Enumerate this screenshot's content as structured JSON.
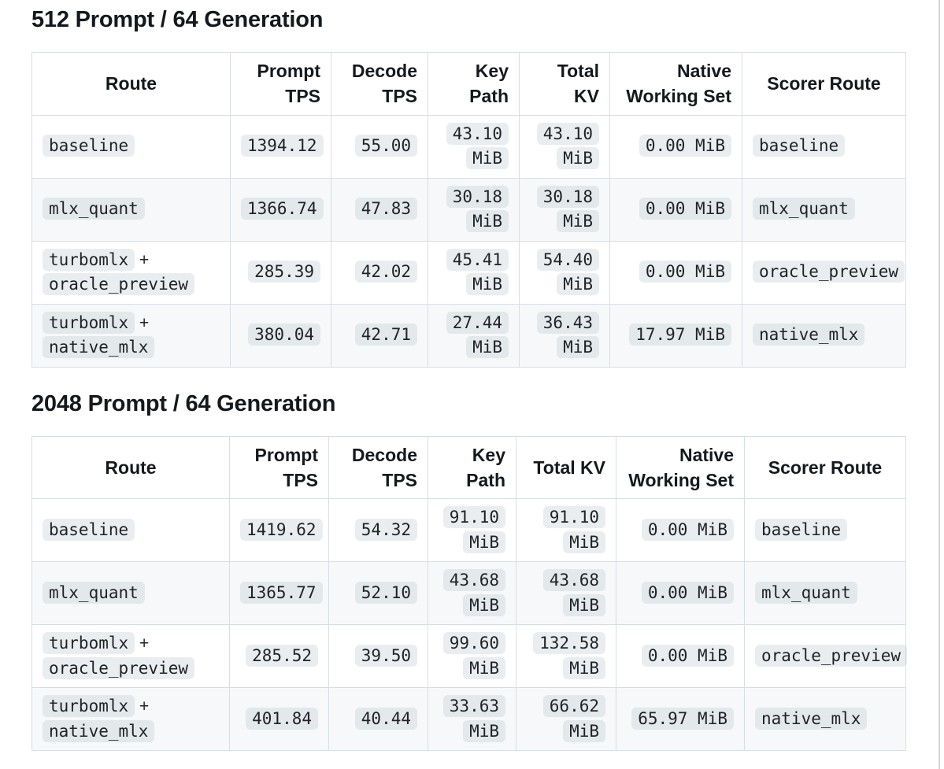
{
  "colors": {
    "border": "#d9dee4",
    "row_stripe": "#f6f8fa",
    "code_chip_bg": "rgba(173,183,192,0.25)",
    "heading_text": "#15181c",
    "body_text": "#1f2328"
  },
  "sections": [
    {
      "heading": "512 Prompt / 64 Generation",
      "table": {
        "columns": [
          {
            "label": "Route",
            "header_align": "center",
            "cell_align": "left"
          },
          {
            "label": "Prompt TPS",
            "header_align": "right",
            "cell_align": "right"
          },
          {
            "label": "Decode TPS",
            "header_align": "right",
            "cell_align": "right"
          },
          {
            "label": "Key Path",
            "header_align": "right",
            "cell_align": "right"
          },
          {
            "label": "Total KV",
            "header_align": "right",
            "cell_align": "right"
          },
          {
            "label": "Native Working Set",
            "header_align": "right",
            "cell_align": "right"
          },
          {
            "label": "Scorer Route",
            "header_align": "center",
            "cell_align": "left"
          }
        ],
        "rows": [
          {
            "cells": [
              {
                "parts": [
                  {
                    "code": "baseline"
                  }
                ]
              },
              {
                "parts": [
                  {
                    "code": "1394.12"
                  }
                ]
              },
              {
                "parts": [
                  {
                    "code": "55.00"
                  }
                ]
              },
              {
                "parts": [
                  {
                    "code": "43.10 MiB"
                  }
                ]
              },
              {
                "parts": [
                  {
                    "code": "43.10 MiB"
                  }
                ]
              },
              {
                "parts": [
                  {
                    "code": "0.00 MiB"
                  }
                ]
              },
              {
                "parts": [
                  {
                    "code": "baseline"
                  }
                ]
              }
            ]
          },
          {
            "cells": [
              {
                "parts": [
                  {
                    "code": "mlx_quant"
                  }
                ]
              },
              {
                "parts": [
                  {
                    "code": "1366.74"
                  }
                ]
              },
              {
                "parts": [
                  {
                    "code": "47.83"
                  }
                ]
              },
              {
                "parts": [
                  {
                    "code": "30.18 MiB"
                  }
                ]
              },
              {
                "parts": [
                  {
                    "code": "30.18 MiB"
                  }
                ]
              },
              {
                "parts": [
                  {
                    "code": "0.00 MiB"
                  }
                ]
              },
              {
                "parts": [
                  {
                    "code": "mlx_quant"
                  }
                ]
              }
            ]
          },
          {
            "cells": [
              {
                "parts": [
                  {
                    "code": "turbomlx"
                  },
                  {
                    "text": " + "
                  },
                  {
                    "code": "oracle_preview"
                  }
                ]
              },
              {
                "parts": [
                  {
                    "code": "285.39"
                  }
                ]
              },
              {
                "parts": [
                  {
                    "code": "42.02"
                  }
                ]
              },
              {
                "parts": [
                  {
                    "code": "45.41 MiB"
                  }
                ]
              },
              {
                "parts": [
                  {
                    "code": "54.40 MiB"
                  }
                ]
              },
              {
                "parts": [
                  {
                    "code": "0.00 MiB"
                  }
                ]
              },
              {
                "parts": [
                  {
                    "code": "oracle_preview"
                  }
                ]
              }
            ]
          },
          {
            "cells": [
              {
                "parts": [
                  {
                    "code": "turbomlx"
                  },
                  {
                    "text": " + "
                  },
                  {
                    "code": "native_mlx"
                  }
                ]
              },
              {
                "parts": [
                  {
                    "code": "380.04"
                  }
                ]
              },
              {
                "parts": [
                  {
                    "code": "42.71"
                  }
                ]
              },
              {
                "parts": [
                  {
                    "code": "27.44 MiB"
                  }
                ]
              },
              {
                "parts": [
                  {
                    "code": "36.43 MiB"
                  }
                ]
              },
              {
                "parts": [
                  {
                    "code": "17.97 MiB"
                  }
                ]
              },
              {
                "parts": [
                  {
                    "code": "native_mlx"
                  }
                ]
              }
            ]
          }
        ]
      }
    },
    {
      "heading": "2048 Prompt / 64 Generation",
      "table": {
        "columns": [
          {
            "label": "Route",
            "header_align": "center",
            "cell_align": "left"
          },
          {
            "label": "Prompt TPS",
            "header_align": "right",
            "cell_align": "right"
          },
          {
            "label": "Decode TPS",
            "header_align": "right",
            "cell_align": "right"
          },
          {
            "label": "Key Path",
            "header_align": "right",
            "cell_align": "right"
          },
          {
            "label": "Total KV",
            "header_align": "right",
            "cell_align": "right"
          },
          {
            "label": "Native Working Set",
            "header_align": "right",
            "cell_align": "right"
          },
          {
            "label": "Scorer Route",
            "header_align": "center",
            "cell_align": "left"
          }
        ],
        "rows": [
          {
            "cells": [
              {
                "parts": [
                  {
                    "code": "baseline"
                  }
                ]
              },
              {
                "parts": [
                  {
                    "code": "1419.62"
                  }
                ]
              },
              {
                "parts": [
                  {
                    "code": "54.32"
                  }
                ]
              },
              {
                "parts": [
                  {
                    "code": "91.10 MiB"
                  }
                ]
              },
              {
                "parts": [
                  {
                    "code": "91.10 MiB"
                  }
                ]
              },
              {
                "parts": [
                  {
                    "code": "0.00 MiB"
                  }
                ]
              },
              {
                "parts": [
                  {
                    "code": "baseline"
                  }
                ]
              }
            ]
          },
          {
            "cells": [
              {
                "parts": [
                  {
                    "code": "mlx_quant"
                  }
                ]
              },
              {
                "parts": [
                  {
                    "code": "1365.77"
                  }
                ]
              },
              {
                "parts": [
                  {
                    "code": "52.10"
                  }
                ]
              },
              {
                "parts": [
                  {
                    "code": "43.68 MiB"
                  }
                ]
              },
              {
                "parts": [
                  {
                    "code": "43.68 MiB"
                  }
                ]
              },
              {
                "parts": [
                  {
                    "code": "0.00 MiB"
                  }
                ]
              },
              {
                "parts": [
                  {
                    "code": "mlx_quant"
                  }
                ]
              }
            ]
          },
          {
            "cells": [
              {
                "parts": [
                  {
                    "code": "turbomlx"
                  },
                  {
                    "text": " + "
                  },
                  {
                    "code": "oracle_preview"
                  }
                ]
              },
              {
                "parts": [
                  {
                    "code": "285.52"
                  }
                ]
              },
              {
                "parts": [
                  {
                    "code": "39.50"
                  }
                ]
              },
              {
                "parts": [
                  {
                    "code": "99.60 MiB"
                  }
                ]
              },
              {
                "parts": [
                  {
                    "code": "132.58 MiB"
                  }
                ]
              },
              {
                "parts": [
                  {
                    "code": "0.00 MiB"
                  }
                ]
              },
              {
                "parts": [
                  {
                    "code": "oracle_preview"
                  }
                ]
              }
            ]
          },
          {
            "cells": [
              {
                "parts": [
                  {
                    "code": "turbomlx"
                  },
                  {
                    "text": " + "
                  },
                  {
                    "code": "native_mlx"
                  }
                ]
              },
              {
                "parts": [
                  {
                    "code": "401.84"
                  }
                ]
              },
              {
                "parts": [
                  {
                    "code": "40.44"
                  }
                ]
              },
              {
                "parts": [
                  {
                    "code": "33.63 MiB"
                  }
                ]
              },
              {
                "parts": [
                  {
                    "code": "66.62 MiB"
                  }
                ]
              },
              {
                "parts": [
                  {
                    "code": "65.97 MiB"
                  }
                ]
              },
              {
                "parts": [
                  {
                    "code": "native_mlx"
                  }
                ]
              }
            ]
          }
        ]
      }
    }
  ]
}
